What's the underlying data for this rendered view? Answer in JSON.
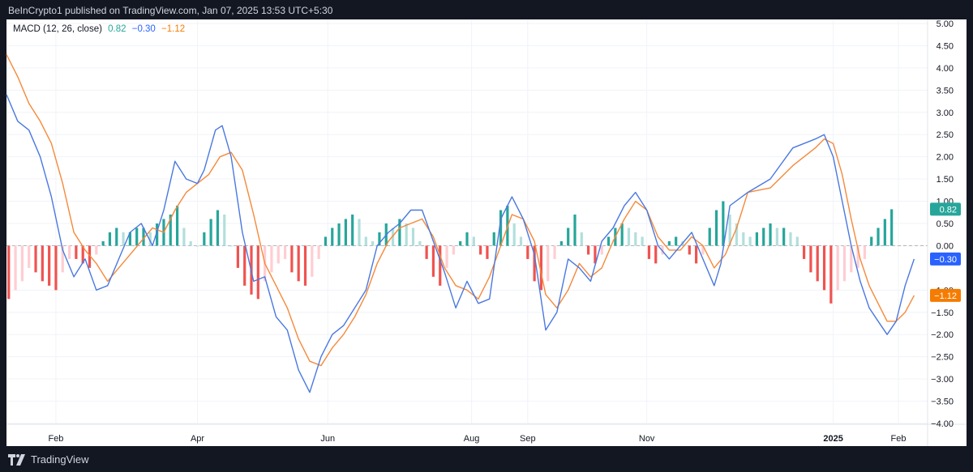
{
  "header": {
    "published_text": "BeInCrypto1 published on TradingView.com, Jan 07, 2025 13:53 UTC+5:30"
  },
  "footer": {
    "brand": "TradingView"
  },
  "chart_data": {
    "type": "line",
    "title": "",
    "indicator": {
      "name": "MACD (12, 26, close)",
      "hist_value": "0.82",
      "macd_value": "−0.30",
      "signal_value": "−1.12"
    },
    "ylim": [
      -4.0,
      5.0
    ],
    "yticks": [
      "5.00",
      "4.50",
      "4.00",
      "3.50",
      "3.00",
      "2.50",
      "2.00",
      "1.50",
      "1.00",
      "0.50",
      "0.00",
      "−1.00",
      "−1.50",
      "−2.00",
      "−2.50",
      "−3.00",
      "−3.50",
      "−4.00"
    ],
    "ytick_values": [
      5.0,
      4.5,
      4.0,
      3.5,
      3.0,
      2.5,
      2.0,
      1.5,
      1.0,
      0.5,
      0.0,
      -1.0,
      -1.5,
      -2.0,
      -2.5,
      -3.0,
      -3.5,
      -4.0
    ],
    "xticks": [
      "Feb",
      "Apr",
      "Jun",
      "Aug",
      "Sep",
      "Nov",
      "2025",
      "Feb"
    ],
    "xtick_positions": [
      22,
      85,
      143,
      207,
      232,
      285,
      368,
      397
    ],
    "x_domain_days": [
      0,
      410
    ],
    "last_values": {
      "hist": {
        "label": "0.82",
        "value": 0.82,
        "color": "#26a69a"
      },
      "macd": {
        "label": "−0.30",
        "value": -0.3,
        "color": "#2962ff"
      },
      "signal": {
        "label": "−1.12",
        "value": -1.12,
        "color": "#f57c00"
      }
    },
    "colors": {
      "macd": "#4a78e0",
      "signal": "#f5893a",
      "hist_pos_strong": "#26a69a",
      "hist_pos_weak": "#b2dfdb",
      "hist_neg_strong": "#ef5350",
      "hist_neg_weak": "#ffcdd2"
    },
    "series": [
      {
        "key": "macd",
        "points": [
          [
            0,
            3.4
          ],
          [
            5,
            2.8
          ],
          [
            10,
            2.6
          ],
          [
            15,
            2.0
          ],
          [
            20,
            1.1
          ],
          [
            25,
            -0.1
          ],
          [
            30,
            -0.7
          ],
          [
            35,
            -0.3
          ],
          [
            40,
            -1.0
          ],
          [
            45,
            -0.9
          ],
          [
            50,
            -0.3
          ],
          [
            55,
            0.3
          ],
          [
            60,
            0.5
          ],
          [
            65,
            0.0
          ],
          [
            70,
            0.8
          ],
          [
            75,
            1.9
          ],
          [
            80,
            1.5
          ],
          [
            85,
            1.4
          ],
          [
            88,
            1.7
          ],
          [
            93,
            2.6
          ],
          [
            96,
            2.7
          ],
          [
            100,
            2.0
          ],
          [
            105,
            0.3
          ],
          [
            110,
            -0.8
          ],
          [
            115,
            -0.7
          ],
          [
            120,
            -1.6
          ],
          [
            125,
            -1.9
          ],
          [
            130,
            -2.8
          ],
          [
            135,
            -3.3
          ],
          [
            140,
            -2.5
          ],
          [
            145,
            -2.0
          ],
          [
            150,
            -1.8
          ],
          [
            155,
            -1.4
          ],
          [
            160,
            -1.0
          ],
          [
            165,
            0.0
          ],
          [
            170,
            0.3
          ],
          [
            175,
            0.5
          ],
          [
            180,
            0.8
          ],
          [
            185,
            0.8
          ],
          [
            190,
            0.1
          ],
          [
            195,
            -0.6
          ],
          [
            200,
            -1.4
          ],
          [
            205,
            -0.8
          ],
          [
            210,
            -1.3
          ],
          [
            215,
            -1.2
          ],
          [
            220,
            0.6
          ],
          [
            225,
            1.1
          ],
          [
            230,
            0.6
          ],
          [
            235,
            -0.2
          ],
          [
            240,
            -1.9
          ],
          [
            245,
            -1.5
          ],
          [
            250,
            -0.3
          ],
          [
            255,
            -0.5
          ],
          [
            260,
            -0.8
          ],
          [
            265,
            0.1
          ],
          [
            270,
            0.4
          ],
          [
            275,
            0.9
          ],
          [
            280,
            1.2
          ],
          [
            285,
            0.8
          ],
          [
            290,
            0.0
          ],
          [
            295,
            -0.3
          ],
          [
            300,
            0.0
          ],
          [
            305,
            0.3
          ],
          [
            310,
            -0.3
          ],
          [
            315,
            -0.9
          ],
          [
            318,
            -0.4
          ],
          [
            322,
            0.9
          ],
          [
            330,
            1.2
          ],
          [
            340,
            1.5
          ],
          [
            350,
            2.2
          ],
          [
            360,
            2.4
          ],
          [
            364,
            2.5
          ],
          [
            368,
            2.0
          ],
          [
            372,
            1.0
          ],
          [
            376,
            0.0
          ],
          [
            380,
            -0.8
          ],
          [
            384,
            -1.4
          ],
          [
            388,
            -1.7
          ],
          [
            392,
            -2.0
          ],
          [
            396,
            -1.7
          ],
          [
            400,
            -0.9
          ],
          [
            404,
            -0.3
          ]
        ]
      },
      {
        "key": "signal",
        "points": [
          [
            0,
            4.3
          ],
          [
            5,
            3.8
          ],
          [
            10,
            3.2
          ],
          [
            15,
            2.8
          ],
          [
            20,
            2.3
          ],
          [
            25,
            1.4
          ],
          [
            30,
            0.3
          ],
          [
            35,
            -0.1
          ],
          [
            40,
            -0.4
          ],
          [
            45,
            -0.8
          ],
          [
            50,
            -0.5
          ],
          [
            55,
            -0.2
          ],
          [
            60,
            0.1
          ],
          [
            65,
            0.4
          ],
          [
            70,
            0.3
          ],
          [
            75,
            0.8
          ],
          [
            80,
            1.2
          ],
          [
            85,
            1.4
          ],
          [
            90,
            1.6
          ],
          [
            95,
            2.0
          ],
          [
            100,
            2.1
          ],
          [
            105,
            1.7
          ],
          [
            110,
            0.7
          ],
          [
            115,
            -0.4
          ],
          [
            120,
            -0.9
          ],
          [
            125,
            -1.4
          ],
          [
            130,
            -2.1
          ],
          [
            135,
            -2.6
          ],
          [
            140,
            -2.7
          ],
          [
            145,
            -2.3
          ],
          [
            150,
            -2.0
          ],
          [
            155,
            -1.6
          ],
          [
            160,
            -1.1
          ],
          [
            165,
            -0.4
          ],
          [
            170,
            0.1
          ],
          [
            175,
            0.4
          ],
          [
            180,
            0.5
          ],
          [
            185,
            0.6
          ],
          [
            190,
            0.2
          ],
          [
            195,
            -0.5
          ],
          [
            200,
            -0.9
          ],
          [
            205,
            -1.0
          ],
          [
            210,
            -1.2
          ],
          [
            215,
            -0.7
          ],
          [
            220,
            0.0
          ],
          [
            225,
            0.7
          ],
          [
            230,
            0.6
          ],
          [
            235,
            0.1
          ],
          [
            240,
            -1.1
          ],
          [
            245,
            -1.4
          ],
          [
            250,
            -1.0
          ],
          [
            255,
            -0.4
          ],
          [
            260,
            -0.7
          ],
          [
            265,
            -0.5
          ],
          [
            270,
            0.1
          ],
          [
            275,
            0.6
          ],
          [
            280,
            1.0
          ],
          [
            285,
            0.8
          ],
          [
            290,
            0.2
          ],
          [
            295,
            -0.1
          ],
          [
            300,
            -0.1
          ],
          [
            305,
            0.2
          ],
          [
            310,
            0.0
          ],
          [
            315,
            -0.5
          ],
          [
            320,
            -0.2
          ],
          [
            325,
            0.4
          ],
          [
            330,
            1.2
          ],
          [
            340,
            1.3
          ],
          [
            350,
            1.8
          ],
          [
            360,
            2.2
          ],
          [
            364,
            2.4
          ],
          [
            368,
            2.3
          ],
          [
            372,
            1.6
          ],
          [
            376,
            0.6
          ],
          [
            380,
            -0.3
          ],
          [
            384,
            -0.9
          ],
          [
            388,
            -1.3
          ],
          [
            392,
            -1.7
          ],
          [
            396,
            -1.7
          ],
          [
            400,
            -1.5
          ],
          [
            404,
            -1.12
          ]
        ]
      },
      {
        "key": "histogram",
        "points": [
          [
            1,
            -1.2
          ],
          [
            4,
            -1.0
          ],
          [
            7,
            -0.8
          ],
          [
            10,
            -0.5
          ],
          [
            13,
            -0.6
          ],
          [
            16,
            -0.8
          ],
          [
            19,
            -0.9
          ],
          [
            22,
            -1.0
          ],
          [
            25,
            -0.6
          ],
          [
            28,
            -0.3
          ],
          [
            31,
            -0.3
          ],
          [
            34,
            -0.4
          ],
          [
            37,
            -0.5
          ],
          [
            40,
            -0.2
          ],
          [
            43,
            0.1
          ],
          [
            46,
            0.3
          ],
          [
            49,
            0.4
          ],
          [
            52,
            0.3
          ],
          [
            55,
            0.3
          ],
          [
            58,
            0.4
          ],
          [
            61,
            0.4
          ],
          [
            64,
            0.3
          ],
          [
            67,
            0.5
          ],
          [
            70,
            0.6
          ],
          [
            73,
            0.7
          ],
          [
            76,
            0.9
          ],
          [
            79,
            0.4
          ],
          [
            82,
            0.1
          ],
          [
            85,
            0.0
          ],
          [
            88,
            0.3
          ],
          [
            91,
            0.6
          ],
          [
            94,
            0.8
          ],
          [
            97,
            0.7
          ],
          [
            100,
            0.0
          ],
          [
            103,
            -0.5
          ],
          [
            106,
            -0.9
          ],
          [
            109,
            -1.1
          ],
          [
            112,
            -1.2
          ],
          [
            115,
            -0.8
          ],
          [
            118,
            -0.6
          ],
          [
            121,
            -0.4
          ],
          [
            124,
            -0.3
          ],
          [
            127,
            -0.6
          ],
          [
            130,
            -0.8
          ],
          [
            133,
            -0.9
          ],
          [
            136,
            -0.7
          ],
          [
            139,
            -0.3
          ],
          [
            142,
            0.2
          ],
          [
            145,
            0.4
          ],
          [
            148,
            0.5
          ],
          [
            151,
            0.6
          ],
          [
            154,
            0.7
          ],
          [
            157,
            0.6
          ],
          [
            160,
            0.2
          ],
          [
            163,
            0.1
          ],
          [
            166,
            0.3
          ],
          [
            169,
            0.5
          ],
          [
            172,
            0.4
          ],
          [
            175,
            0.6
          ],
          [
            178,
            0.5
          ],
          [
            181,
            0.4
          ],
          [
            184,
            0.1
          ],
          [
            187,
            -0.3
          ],
          [
            190,
            -0.7
          ],
          [
            193,
            -0.9
          ],
          [
            196,
            -0.5
          ],
          [
            199,
            -0.2
          ],
          [
            202,
            0.1
          ],
          [
            205,
            0.3
          ],
          [
            208,
            0.2
          ],
          [
            211,
            -0.2
          ],
          [
            214,
            -0.3
          ],
          [
            217,
            0.3
          ],
          [
            220,
            0.8
          ],
          [
            223,
            0.9
          ],
          [
            226,
            0.5
          ],
          [
            229,
            0.2
          ],
          [
            232,
            -0.3
          ],
          [
            235,
            -0.8
          ],
          [
            238,
            -1.0
          ],
          [
            241,
            -0.8
          ],
          [
            244,
            -0.3
          ],
          [
            247,
            0.1
          ],
          [
            250,
            0.4
          ],
          [
            253,
            0.7
          ],
          [
            256,
            0.3
          ],
          [
            259,
            -0.2
          ],
          [
            262,
            -0.4
          ],
          [
            265,
            -0.2
          ],
          [
            268,
            0.2
          ],
          [
            271,
            0.4
          ],
          [
            274,
            0.5
          ],
          [
            277,
            0.4
          ],
          [
            280,
            0.3
          ],
          [
            283,
            0.2
          ],
          [
            286,
            -0.3
          ],
          [
            289,
            -0.4
          ],
          [
            292,
            -0.2
          ],
          [
            295,
            0.1
          ],
          [
            298,
            0.2
          ],
          [
            301,
            0.1
          ],
          [
            304,
            -0.2
          ],
          [
            307,
            -0.4
          ],
          [
            310,
            -0.2
          ],
          [
            313,
            0.4
          ],
          [
            316,
            0.8
          ],
          [
            319,
            1.0
          ],
          [
            322,
            0.7
          ],
          [
            325,
            0.5
          ],
          [
            328,
            0.3
          ],
          [
            331,
            0.2
          ],
          [
            334,
            0.3
          ],
          [
            337,
            0.4
          ],
          [
            340,
            0.5
          ],
          [
            343,
            0.4
          ],
          [
            346,
            0.4
          ],
          [
            349,
            0.3
          ],
          [
            352,
            0.2
          ],
          [
            355,
            -0.3
          ],
          [
            358,
            -0.6
          ],
          [
            361,
            -0.8
          ],
          [
            364,
            -1.0
          ],
          [
            367,
            -1.3
          ],
          [
            370,
            -1.0
          ],
          [
            373,
            -0.8
          ],
          [
            376,
            -0.6
          ],
          [
            379,
            -0.5
          ],
          [
            382,
            -0.3
          ],
          [
            385,
            0.2
          ],
          [
            388,
            0.4
          ],
          [
            391,
            0.6
          ],
          [
            394,
            0.82
          ]
        ]
      }
    ]
  }
}
